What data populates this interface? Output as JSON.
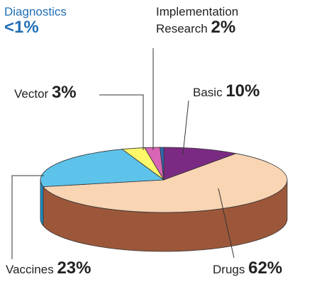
{
  "chart_data": {
    "type": "pie3d",
    "categories": [
      "Basic",
      "Drugs",
      "Vaccines",
      "Vector",
      "Implementation Research",
      "Diagnostics"
    ],
    "values": [
      10,
      62,
      23,
      3,
      2,
      0.5
    ],
    "value_labels": [
      "10%",
      "62%",
      "23%",
      "3%",
      "2%",
      "<1%"
    ],
    "colors": [
      "#7b2a83",
      "#f9d5b4",
      "#5ec3ea",
      "#fff86a",
      "#d865b5",
      "#2b6bb3"
    ],
    "side_colors": [
      "#4e1655",
      "#9c573a",
      "#1b8fc4",
      "#c9c233",
      "#9c3a80",
      "#1a4a80"
    ]
  }
}
